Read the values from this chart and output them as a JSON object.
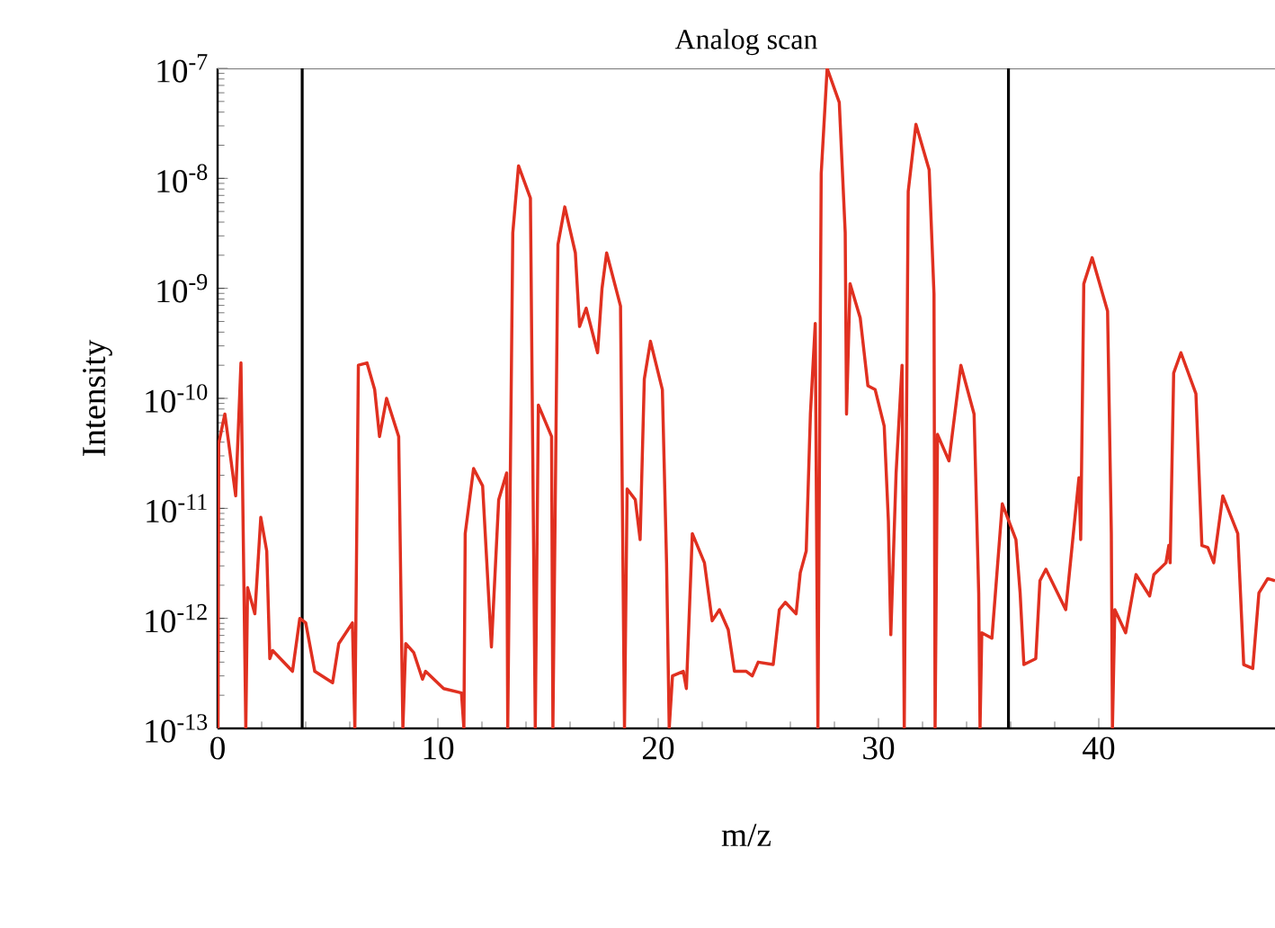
{
  "chart_data": {
    "type": "line",
    "title": "Analog scan",
    "xlabel": "m/z",
    "ylabel": "Intensity",
    "log": "y",
    "color": "#e03020",
    "xlim": [
      0,
      48
    ],
    "xticks": [
      0,
      10,
      20,
      30,
      40
    ],
    "ylim": [
      1e-13,
      1e-07
    ],
    "yticks": [
      {
        "value": 1e-13,
        "label": "10$^{-13}$"
      },
      {
        "value": 1e-12,
        "label": "10$^{-12}$"
      },
      {
        "value": 1e-11,
        "label": "10$^{-11}$"
      },
      {
        "value": 1e-10,
        "label": "10$^{-10}$"
      },
      {
        "value": 1e-09,
        "label": "10$^{-9}$"
      },
      {
        "value": 1e-08,
        "label": "10$^{-8}$"
      },
      {
        "value": 1e-07,
        "label": "10$^{-7}$"
      }
    ],
    "ref_lines": [
      {
        "axis": "x",
        "value": 3.84,
        "color": "#000000"
      },
      {
        "axis": "x",
        "value": 35.9,
        "color": "#000000"
      }
    ],
    "x": [
      0.02,
      0.05,
      0.33,
      0.82,
      1.06,
      1.28,
      1.36,
      1.69,
      1.96,
      2.23,
      2.37,
      2.5,
      3.4,
      3.73,
      4.0,
      4.41,
      5.22,
      5.5,
      6.12,
      6.23,
      6.39,
      6.78,
      7.13,
      7.35,
      7.67,
      8.22,
      8.41,
      8.54,
      8.9,
      9.3,
      9.44,
      10.26,
      11.07,
      11.18,
      11.24,
      11.62,
      12.03,
      12.43,
      12.76,
      13.12,
      13.17,
      13.4,
      13.66,
      14.2,
      14.42,
      14.56,
      15.16,
      15.22,
      15.45,
      15.76,
      16.24,
      16.43,
      16.73,
      17.25,
      17.45,
      17.66,
      18.29,
      18.47,
      18.59,
      18.96,
      19.18,
      19.37,
      19.65,
      20.19,
      20.38,
      20.5,
      20.65,
      21.14,
      21.28,
      21.55,
      22.1,
      22.45,
      22.78,
      23.18,
      23.46,
      24.0,
      24.27,
      24.54,
      25.22,
      25.5,
      25.77,
      26.26,
      26.45,
      26.72,
      26.91,
      27.13,
      27.25,
      27.4,
      27.67,
      28.22,
      28.49,
      28.55,
      28.71,
      29.17,
      29.52,
      29.85,
      30.26,
      30.45,
      30.56,
      30.8,
      31.07,
      31.17,
      31.35,
      31.7,
      32.3,
      32.52,
      32.57,
      32.68,
      33.2,
      33.74,
      34.34,
      34.55,
      34.61,
      34.69,
      35.15,
      35.62,
      36.24,
      36.43,
      36.6,
      37.14,
      37.33,
      37.6,
      38.5,
      39.1,
      39.18,
      39.32,
      39.7,
      40.4,
      40.57,
      40.62,
      40.73,
      41.22,
      41.69,
      42.31,
      42.5,
      43.05,
      43.18,
      43.24,
      43.4,
      43.73,
      44.41,
      44.68,
      44.95,
      45.22,
      45.63,
      46.31,
      46.58,
      46.99,
      47.27,
      47.67,
      48.0
    ],
    "values": [
      1e-13,
      3.9e-11,
      7.2e-11,
      1.3e-11,
      2.1e-10,
      1e-13,
      1.9e-12,
      1.1e-12,
      8.3e-12,
      4.1e-12,
      4.3e-13,
      5.1e-13,
      3.3e-13,
      1e-12,
      9.1e-13,
      3.3e-13,
      2.6e-13,
      5.9e-13,
      9.1e-13,
      1e-13,
      2e-10,
      2.1e-10,
      1.2e-10,
      4.5e-11,
      1e-10,
      4.5e-11,
      1e-13,
      5.9e-13,
      4.9e-13,
      2.8e-13,
      3.3e-13,
      2.3e-13,
      2.1e-13,
      1e-13,
      5.9e-12,
      2.3e-11,
      1.6e-11,
      5.5e-13,
      1.2e-11,
      2.1e-11,
      1e-13,
      3.2e-09,
      1.3e-08,
      6.6e-09,
      1e-13,
      8.7e-11,
      4.5e-11,
      1e-13,
      2.5e-09,
      5.5e-09,
      2.1e-09,
      4.5e-10,
      6.6e-10,
      2.6e-10,
      1e-09,
      2.1e-09,
      6.9e-10,
      1e-13,
      1.5e-11,
      1.2e-11,
      5.2e-12,
      1.5e-10,
      3.3e-10,
      1.2e-10,
      3.2e-12,
      1e-13,
      3e-13,
      3.3e-13,
      2.3e-13,
      5.9e-12,
      3.2e-12,
      9.5e-13,
      1.2e-12,
      7.9e-13,
      3.3e-13,
      3.3e-13,
      3e-13,
      4e-13,
      3.8e-13,
      1.2e-12,
      1.4e-12,
      1.1e-12,
      2.6e-12,
      4.1e-12,
      7.2e-11,
      4.8e-10,
      1e-13,
      1.1e-08,
      1e-07,
      4.9e-08,
      3.2e-09,
      7.2e-11,
      1.1e-09,
      5.4e-10,
      1.3e-10,
      1.2e-10,
      5.6e-11,
      7.6e-12,
      7.1e-13,
      2.1e-11,
      2e-10,
      1e-13,
      7.6e-09,
      3.1e-08,
      1.2e-08,
      8.9e-10,
      1e-13,
      4.7e-11,
      2.7e-11,
      2e-10,
      7.2e-11,
      1.7e-12,
      1e-13,
      7.4e-13,
      6.6e-13,
      1.1e-11,
      5.2e-12,
      1.7e-12,
      3.8e-13,
      4.3e-13,
      2.2e-12,
      2.8e-12,
      1.2e-12,
      1.9e-11,
      5.2e-12,
      1.1e-09,
      1.9e-09,
      6.2e-10,
      5.9e-12,
      1e-13,
      1.2e-12,
      7.4e-13,
      2.5e-12,
      1.6e-12,
      2.5e-12,
      3.2e-12,
      4.6e-12,
      3.2e-12,
      1.7e-10,
      2.6e-10,
      1.1e-10,
      4.6e-12,
      4.4e-12,
      3.2e-12,
      1.3e-11,
      5.9e-12,
      3.8e-13,
      3.5e-13,
      1.7e-12,
      2.3e-12,
      2.2e-12
    ]
  }
}
